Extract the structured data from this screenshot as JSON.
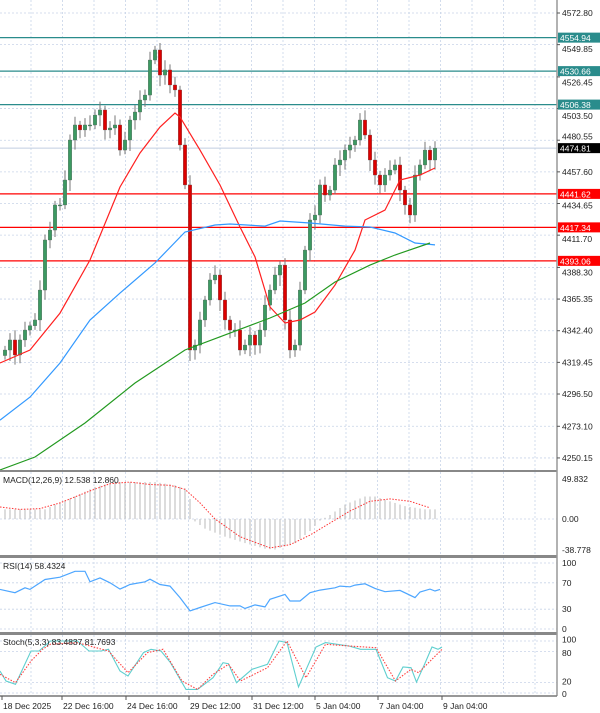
{
  "chart_data": [
    {
      "type": "candlestick",
      "panel": "price",
      "y_axis_ticks": [
        "4572.80",
        "4549.85",
        "4526.45",
        "4503.50",
        "4480.55",
        "4457.60",
        "4434.65",
        "4411.70",
        "4388.30",
        "4365.35",
        "4342.40",
        "4319.45",
        "4296.50",
        "4273.10",
        "4250.15"
      ],
      "ylim": [
        4240,
        4580
      ],
      "x_axis_ticks": [
        "18 Dec 2025",
        "22 Dec 16:00",
        "24 Dec 16:00",
        "29 Dec 12:00",
        "31 Dec 12:00",
        "5 Jan 04:00",
        "7 Jan 04:00",
        "9 Jan 04:00"
      ],
      "grid": true,
      "closes": [
        4328.4,
        4335.7,
        4324.8,
        4335.7,
        4342.9,
        4346.0,
        4350.2,
        4371.9,
        4408.2,
        4415.4,
        4433.6,
        4433.6,
        4451.7,
        4480.7,
        4491.6,
        4488.0,
        4491.6,
        4491.6,
        4498.8,
        4502.5,
        4488.0,
        4489.4,
        4491.6,
        4473.4,
        4480.7,
        4495.2,
        4501.0,
        4509.7,
        4513.3,
        4538.7,
        4546.0,
        4527.8,
        4531.5,
        4520.6,
        4517.0,
        4477.1,
        4448.1,
        4328.4,
        4332.0,
        4350.2,
        4364.7,
        4379.2,
        4382.8,
        4364.7,
        4350.2,
        4342.9,
        4342.9,
        4328.4,
        4332.0,
        4339.3,
        4332.0,
        4342.9,
        4361.0,
        4371.9,
        4382.8,
        4390.0,
        4350.2,
        4328.4,
        4332.0,
        4371.9,
        4400.9,
        4422.7,
        4426.3,
        4448.1,
        4440.8,
        4444.4,
        4462.6,
        4466.2,
        4473.4,
        4477.1,
        4480.7,
        4495.2,
        4484.3,
        4466.2,
        4455.3,
        4448.1,
        4455.3,
        4458.9,
        4462.6,
        4444.4,
        4433.6,
        4426.3,
        4455.3,
        4462.6,
        4473.4,
        4466.2,
        4474.81
      ],
      "moving_averages": [
        {
          "color": "#ff2020",
          "points": [
            [
              0,
              4319.0
            ],
            [
              6,
              4328.4
            ],
            [
              12,
              4355.2
            ],
            [
              18,
              4393.7
            ],
            [
              24,
              4446.6
            ],
            [
              28,
              4471.3
            ],
            [
              32,
              4490.1
            ],
            [
              35,
              4500.3
            ],
            [
              36,
              4497.4
            ],
            [
              40,
              4473.4
            ],
            [
              44,
              4448.1
            ],
            [
              48,
              4417.6
            ],
            [
              51,
              4395.9
            ],
            [
              54,
              4359.6
            ],
            [
              57,
              4348.0
            ],
            [
              60,
              4350.2
            ],
            [
              63,
              4356.0
            ],
            [
              67,
              4375.5
            ],
            [
              71,
              4400.9
            ],
            [
              73,
              4422.7
            ],
            [
              77,
              4429.9
            ],
            [
              80,
              4451.7
            ],
            [
              84,
              4455.3
            ],
            [
              87,
              4460.4
            ]
          ]
        },
        {
          "color": "#3399ff",
          "points": [
            [
              0,
              4277.6
            ],
            [
              6,
              4294.3
            ],
            [
              12,
              4319.0
            ],
            [
              18,
              4350.2
            ],
            [
              24,
              4369.7
            ],
            [
              31,
              4391.5
            ],
            [
              37,
              4414.0
            ],
            [
              43,
              4419.1
            ],
            [
              46,
              4419.8
            ],
            [
              53,
              4418.3
            ],
            [
              56,
              4422.0
            ],
            [
              62,
              4420.5
            ],
            [
              69,
              4418.3
            ],
            [
              74,
              4417.6
            ],
            [
              79,
              4413.3
            ],
            [
              83,
              4406.0
            ],
            [
              87,
              4404.6
            ]
          ]
        },
        {
          "color": "#22991f",
          "points": [
            [
              0,
              4241.4
            ],
            [
              7,
              4250.8
            ],
            [
              17,
              4275.5
            ],
            [
              27,
              4304.5
            ],
            [
              37,
              4328.4
            ],
            [
              46,
              4340.7
            ],
            [
              54,
              4351.6
            ],
            [
              61,
              4362.5
            ],
            [
              67,
              4377.7
            ],
            [
              74,
              4390.0
            ],
            [
              79,
              4397.3
            ],
            [
              86,
              4406.0
            ]
          ]
        }
      ],
      "levels": [
        {
          "value": "4554.94",
          "color": "#2a8c8c"
        },
        {
          "value": "4530.66",
          "color": "#2a8c8c"
        },
        {
          "value": "4506.38",
          "color": "#2a8c8c"
        },
        {
          "value": "4441.62",
          "color": "#ff0000"
        },
        {
          "value": "4417.34",
          "color": "#ff0000"
        },
        {
          "value": "4393.06",
          "color": "#ff0000"
        }
      ],
      "current_price": "4474.81"
    },
    {
      "type": "bar",
      "panel": "macd",
      "title": "MACD(12,26,9) 12.538 12.860",
      "y_axis_ticks": [
        "49.832",
        "0.00",
        "-38.778"
      ],
      "histogram": [
        [
          0,
          12
        ],
        [
          8,
          12
        ],
        [
          10,
          18
        ],
        [
          14,
          28
        ],
        [
          18,
          40
        ],
        [
          22,
          46
        ],
        [
          30,
          46
        ],
        [
          34,
          42
        ],
        [
          36,
          38
        ],
        [
          37,
          25
        ],
        [
          38,
          -3
        ],
        [
          40,
          -12
        ],
        [
          44,
          -22
        ],
        [
          48,
          -30
        ],
        [
          52,
          -37
        ],
        [
          54,
          -38
        ],
        [
          58,
          -30
        ],
        [
          61,
          -15
        ],
        [
          63,
          -2
        ],
        [
          65,
          5
        ],
        [
          68,
          18
        ],
        [
          72,
          28
        ],
        [
          74,
          28
        ],
        [
          77,
          22
        ],
        [
          80,
          16
        ],
        [
          84,
          12
        ],
        [
          86,
          12
        ]
      ],
      "signal": [
        [
          0,
          15
        ],
        [
          4,
          12
        ],
        [
          8,
          13
        ],
        [
          12,
          20
        ],
        [
          18,
          35
        ],
        [
          22,
          44
        ],
        [
          26,
          46
        ],
        [
          30,
          43
        ],
        [
          34,
          42
        ],
        [
          37,
          37
        ],
        [
          40,
          20
        ],
        [
          43,
          0
        ],
        [
          48,
          -22
        ],
        [
          54,
          -36
        ],
        [
          58,
          -32
        ],
        [
          62,
          -20
        ],
        [
          66,
          -5
        ],
        [
          70,
          10
        ],
        [
          74,
          22
        ],
        [
          78,
          25
        ],
        [
          82,
          22
        ],
        [
          86,
          14
        ]
      ]
    },
    {
      "type": "line",
      "panel": "rsi",
      "title": "RSI(14) 58.4324",
      "y_axis_ticks": [
        "100",
        "70",
        "30",
        "0"
      ],
      "ylim": [
        0,
        100
      ],
      "series": [
        {
          "color": "#4da6ff",
          "points": [
            [
              0,
              60
            ],
            [
              3,
              55
            ],
            [
              5,
              62.5
            ],
            [
              6,
              60
            ],
            [
              9,
              75
            ],
            [
              12,
              78.5
            ],
            [
              15,
              87.5
            ],
            [
              17,
              87.5
            ],
            [
              18,
              71.5
            ],
            [
              20,
              77.5
            ],
            [
              22,
              70
            ],
            [
              24,
              60.5
            ],
            [
              26,
              67.5
            ],
            [
              29,
              71.5
            ],
            [
              30,
              75.5
            ],
            [
              32,
              67.5
            ],
            [
              34,
              65
            ],
            [
              36,
              47.5
            ],
            [
              38,
              27.5
            ],
            [
              40,
              32.5
            ],
            [
              43,
              40
            ],
            [
              46,
              35
            ],
            [
              48,
              35
            ],
            [
              49,
              31
            ],
            [
              51,
              36.5
            ],
            [
              53,
              33.5
            ],
            [
              54,
              45
            ],
            [
              57,
              52.5
            ],
            [
              58,
              42.5
            ],
            [
              60,
              42.5
            ],
            [
              62,
              55
            ],
            [
              64,
              59
            ],
            [
              67,
              62.5
            ],
            [
              68,
              65
            ],
            [
              70,
              64
            ],
            [
              71,
              66.5
            ],
            [
              73,
              68.5
            ],
            [
              75,
              61.5
            ],
            [
              77,
              56.5
            ],
            [
              80,
              58.5
            ],
            [
              83,
              47.5
            ],
            [
              84,
              56
            ],
            [
              86,
              60.5
            ],
            [
              87,
              57.5
            ],
            [
              88,
              60
            ]
          ]
        }
      ]
    },
    {
      "type": "line",
      "panel": "stochastic",
      "title": "Stoch(5,3,3) 83.4837 81.7693",
      "y_axis_ticks": [
        "100",
        "80",
        "20",
        "0"
      ],
      "ylim": [
        0,
        100
      ],
      "series": [
        {
          "color": "#5fcfcf",
          "points": [
            [
              0,
              42.3
            ],
            [
              1.2,
              23
            ],
            [
              3.1,
              16.7
            ],
            [
              6.2,
              80.8
            ],
            [
              7.8,
              80.8
            ],
            [
              10.1,
              100
            ],
            [
              15.5,
              100
            ],
            [
              17.8,
              80.8
            ],
            [
              20.2,
              80.8
            ],
            [
              21.7,
              84
            ],
            [
              24,
              42.3
            ],
            [
              25.6,
              32.7
            ],
            [
              28.7,
              77.6
            ],
            [
              30.2,
              84
            ],
            [
              32.2,
              80.8
            ],
            [
              34.1,
              58.3
            ],
            [
              37.2,
              7
            ],
            [
              39.5,
              7
            ],
            [
              42.6,
              29.5
            ],
            [
              44.6,
              58.3
            ],
            [
              45.7,
              56.4
            ],
            [
              47.3,
              19.9
            ],
            [
              50.4,
              45.5
            ],
            [
              53.5,
              55.1
            ],
            [
              55.8,
              100
            ],
            [
              57.4,
              97
            ],
            [
              59.7,
              11.5
            ],
            [
              63.2,
              88.5
            ],
            [
              65.1,
              97
            ],
            [
              69.8,
              90.4
            ],
            [
              72.1,
              84
            ],
            [
              75.2,
              84
            ],
            [
              77.5,
              29.5
            ],
            [
              79.1,
              23
            ],
            [
              80.6,
              50
            ],
            [
              82.2,
              48.7
            ],
            [
              83.3,
              21
            ],
            [
              84.9,
              55
            ],
            [
              86.4,
              88.5
            ],
            [
              87.6,
              84
            ],
            [
              88.4,
              88.5
            ]
          ]
        },
        {
          "color": "#ff4040",
          "dashed": true,
          "points": [
            [
              0,
              35.9
            ],
            [
              3.1,
              19.9
            ],
            [
              6.2,
              61.5
            ],
            [
              8.5,
              84
            ],
            [
              10.1,
              93.6
            ],
            [
              15.5,
              96.8
            ],
            [
              21.7,
              80.8
            ],
            [
              25.6,
              39.1
            ],
            [
              29.5,
              77.6
            ],
            [
              32.6,
              84
            ],
            [
              36.4,
              23
            ],
            [
              39.5,
              7
            ],
            [
              42.6,
              35.9
            ],
            [
              45.7,
              55.1
            ],
            [
              48.1,
              23
            ],
            [
              53.5,
              48.7
            ],
            [
              57.4,
              100
            ],
            [
              61.2,
              29.5
            ],
            [
              65.1,
              93.6
            ],
            [
              69.8,
              90.4
            ],
            [
              75.2,
              87.2
            ],
            [
              79.1,
              23
            ],
            [
              82.2,
              45.5
            ],
            [
              83.7,
              39.1
            ],
            [
              88.4,
              84
            ]
          ]
        }
      ]
    }
  ],
  "colors": {
    "bull": "#3c9a62",
    "bear": "#dd0000",
    "grid": "#c8d4e8",
    "axis": "#9a9a9a"
  }
}
